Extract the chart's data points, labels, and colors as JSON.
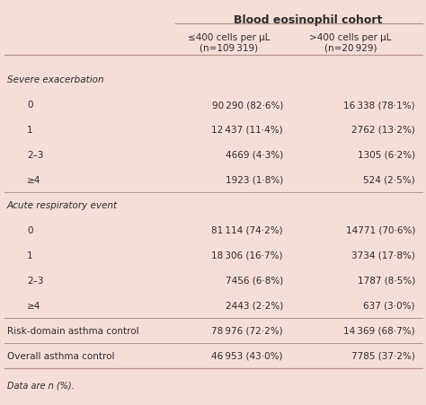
{
  "title": "Blood eosinophil cohort",
  "col1_header_line1": "≤400 cells per μL",
  "col1_header_line2": "(n=109 319)",
  "col2_header_line1": ">400 cells per μL",
  "col2_header_line2": "(n=20 929)",
  "rows": [
    {
      "label": "Severe exacerbation",
      "val1": "",
      "val2": "",
      "indent": false,
      "section_header": true
    },
    {
      "label": "0",
      "val1": "90 290 (82·6%)",
      "val2": "16 338 (78·1%)",
      "indent": true,
      "section_header": false
    },
    {
      "label": "1",
      "val1": "12 437 (11·4%)",
      "val2": "2762 (13·2%)",
      "indent": true,
      "section_header": false
    },
    {
      "label": "2–3",
      "val1": "4669 (4·3%)",
      "val2": "1305 (6·2%)",
      "indent": true,
      "section_header": false
    },
    {
      "label": "≥4",
      "val1": "1923 (1·8%)",
      "val2": "524 (2·5%)",
      "indent": true,
      "section_header": false
    },
    {
      "label": "Acute respiratory event",
      "val1": "",
      "val2": "",
      "indent": false,
      "section_header": true
    },
    {
      "label": "0",
      "val1": "81 114 (74·2%)",
      "val2": "14771 (70·6%)",
      "indent": true,
      "section_header": false
    },
    {
      "label": "1",
      "val1": "18 306 (16·7%)",
      "val2": "3734 (17·8%)",
      "indent": true,
      "section_header": false
    },
    {
      "label": "2–3",
      "val1": "7456 (6·8%)",
      "val2": "1787 (8·5%)",
      "indent": true,
      "section_header": false
    },
    {
      "label": "≥4",
      "val1": "2443 (2·2%)",
      "val2": "637 (3·0%)",
      "indent": true,
      "section_header": false
    },
    {
      "label": "Risk-domain asthma control",
      "val1": "78 976 (72·2%)",
      "val2": "14 369 (68·7%)",
      "indent": false,
      "section_header": false
    },
    {
      "label": "Overall asthma control",
      "val1": "46 953 (43·0%)",
      "val2": "7785 (37·2%)",
      "indent": false,
      "section_header": false
    }
  ],
  "footer": "Data are n (%).",
  "bg_color": "#f5ddd8",
  "text_color": "#2d2d2d",
  "line_color": "#b8948e",
  "fontsize": 7.5,
  "title_fontsize": 9.0
}
